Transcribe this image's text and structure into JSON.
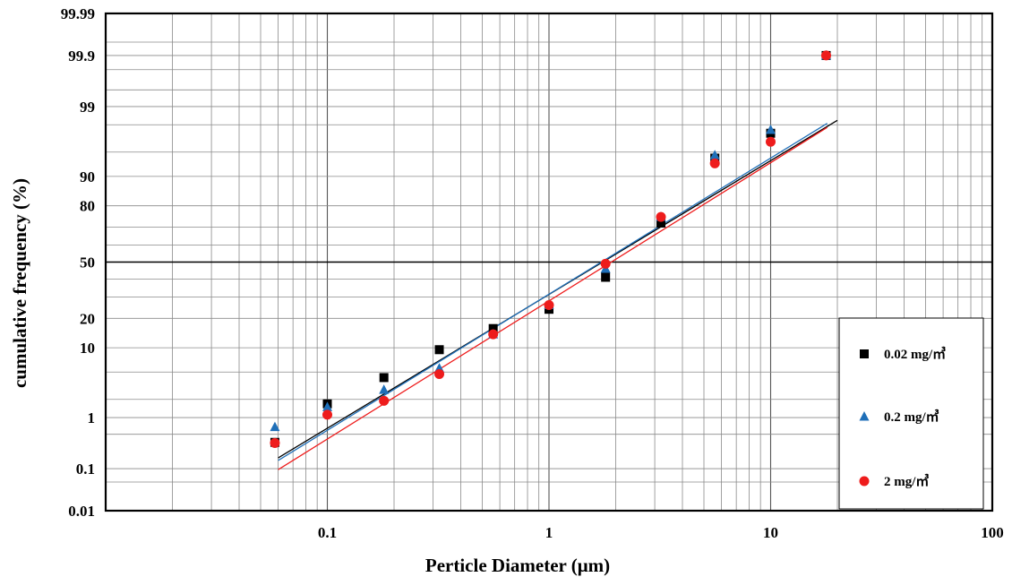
{
  "chart_data": {
    "type": "scatter",
    "title": "",
    "xlabel": "Perticle  Diameter (μm)",
    "ylabel": "cumulative frequency (%)",
    "x_scale": "log",
    "y_scale": "probability",
    "xlim": [
      0.01,
      100
    ],
    "x_ticks": [
      {
        "value": 0.1,
        "label": "0.1"
      },
      {
        "value": 1,
        "label": "1"
      },
      {
        "value": 10,
        "label": "10"
      },
      {
        "value": 100,
        "label": "100"
      }
    ],
    "y_ticks": [
      {
        "value": 0.01,
        "label": "0.01"
      },
      {
        "value": 0.1,
        "label": "0.1"
      },
      {
        "value": 1,
        "label": "1"
      },
      {
        "value": 10,
        "label": "10"
      },
      {
        "value": 20,
        "label": "20"
      },
      {
        "value": 50,
        "label": "50"
      },
      {
        "value": 80,
        "label": "80"
      },
      {
        "value": 90,
        "label": "90"
      },
      {
        "value": 99,
        "label": "99"
      },
      {
        "value": 99.9,
        "label": "99.9"
      },
      {
        "value": 99.99,
        "label": "99.99"
      }
    ],
    "grid": true,
    "legend_position": "bottom-right",
    "series": [
      {
        "name": "0.02 mg/㎥",
        "color": "#000000",
        "marker": "square",
        "points": [
          {
            "x": 0.058,
            "y": 0.35
          },
          {
            "x": 0.1,
            "y": 1.7
          },
          {
            "x": 0.18,
            "y": 4.2
          },
          {
            "x": 0.32,
            "y": 9.5
          },
          {
            "x": 0.56,
            "y": 16
          },
          {
            "x": 1.0,
            "y": 24
          },
          {
            "x": 1.8,
            "y": 41
          },
          {
            "x": 3.2,
            "y": 72
          },
          {
            "x": 5.6,
            "y": 94
          },
          {
            "x": 10,
            "y": 97.3
          },
          {
            "x": 17.8,
            "y": 99.9
          }
        ],
        "fit": {
          "x": [
            0.06,
            20
          ],
          "y": [
            0.17,
            98.3
          ]
        }
      },
      {
        "name": "0.2 mg/㎥",
        "color": "#1f6fb8",
        "marker": "triangle",
        "points": [
          {
            "x": 0.058,
            "y": 0.68
          },
          {
            "x": 0.1,
            "y": 1.5
          },
          {
            "x": 0.18,
            "y": 2.8
          },
          {
            "x": 0.32,
            "y": 5.6
          },
          {
            "x": 0.56,
            "y": 14
          },
          {
            "x": 1.0,
            "y": 26
          },
          {
            "x": 1.8,
            "y": 46
          },
          {
            "x": 3.2,
            "y": 75
          },
          {
            "x": 5.6,
            "y": 94.5
          },
          {
            "x": 10,
            "y": 97.6
          },
          {
            "x": 17.8,
            "y": 99.9
          }
        ],
        "fit": {
          "x": [
            0.06,
            18
          ],
          "y": [
            0.15,
            98.1
          ]
        }
      },
      {
        "name": "2 mg/㎥",
        "color": "#ee1c1c",
        "marker": "circle",
        "points": [
          {
            "x": 0.058,
            "y": 0.34
          },
          {
            "x": 0.1,
            "y": 1.12
          },
          {
            "x": 0.18,
            "y": 1.9
          },
          {
            "x": 0.32,
            "y": 4.7
          },
          {
            "x": 0.56,
            "y": 14
          },
          {
            "x": 1.0,
            "y": 26
          },
          {
            "x": 1.8,
            "y": 49
          },
          {
            "x": 3.2,
            "y": 75
          },
          {
            "x": 5.6,
            "y": 93
          },
          {
            "x": 10,
            "y": 96.4
          },
          {
            "x": 17.8,
            "y": 99.9
          }
        ],
        "fit": {
          "x": [
            0.06,
            18
          ],
          "y": [
            0.095,
            97.8
          ]
        }
      }
    ]
  }
}
